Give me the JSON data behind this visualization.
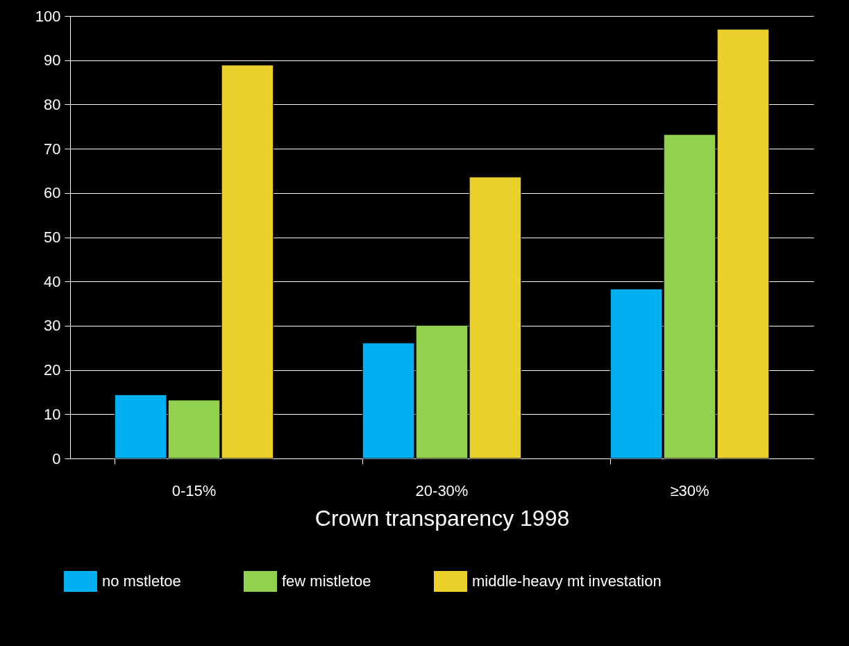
{
  "chart_data": {
    "type": "bar",
    "xlabel": "Crown transparency 1998",
    "categories": [
      "0-15%",
      "20-30%",
      "≥30%"
    ],
    "series": [
      {
        "name": "no mstletoe",
        "color": "#00b0f0",
        "values": [
          14.4,
          26.1,
          38.3
        ]
      },
      {
        "name": "few mistletoe",
        "color": "#92d050",
        "values": [
          13.2,
          30.1,
          73.2
        ]
      },
      {
        "name": "middle-heavy mt investation",
        "color": "#ebd02c",
        "values": [
          88.9,
          63.6,
          97.0
        ]
      }
    ],
    "ylim": [
      0,
      100
    ],
    "yticks": [
      0,
      10,
      20,
      30,
      40,
      50,
      60,
      70,
      80,
      90,
      100
    ],
    "grid": "y",
    "legend": "bottom"
  }
}
